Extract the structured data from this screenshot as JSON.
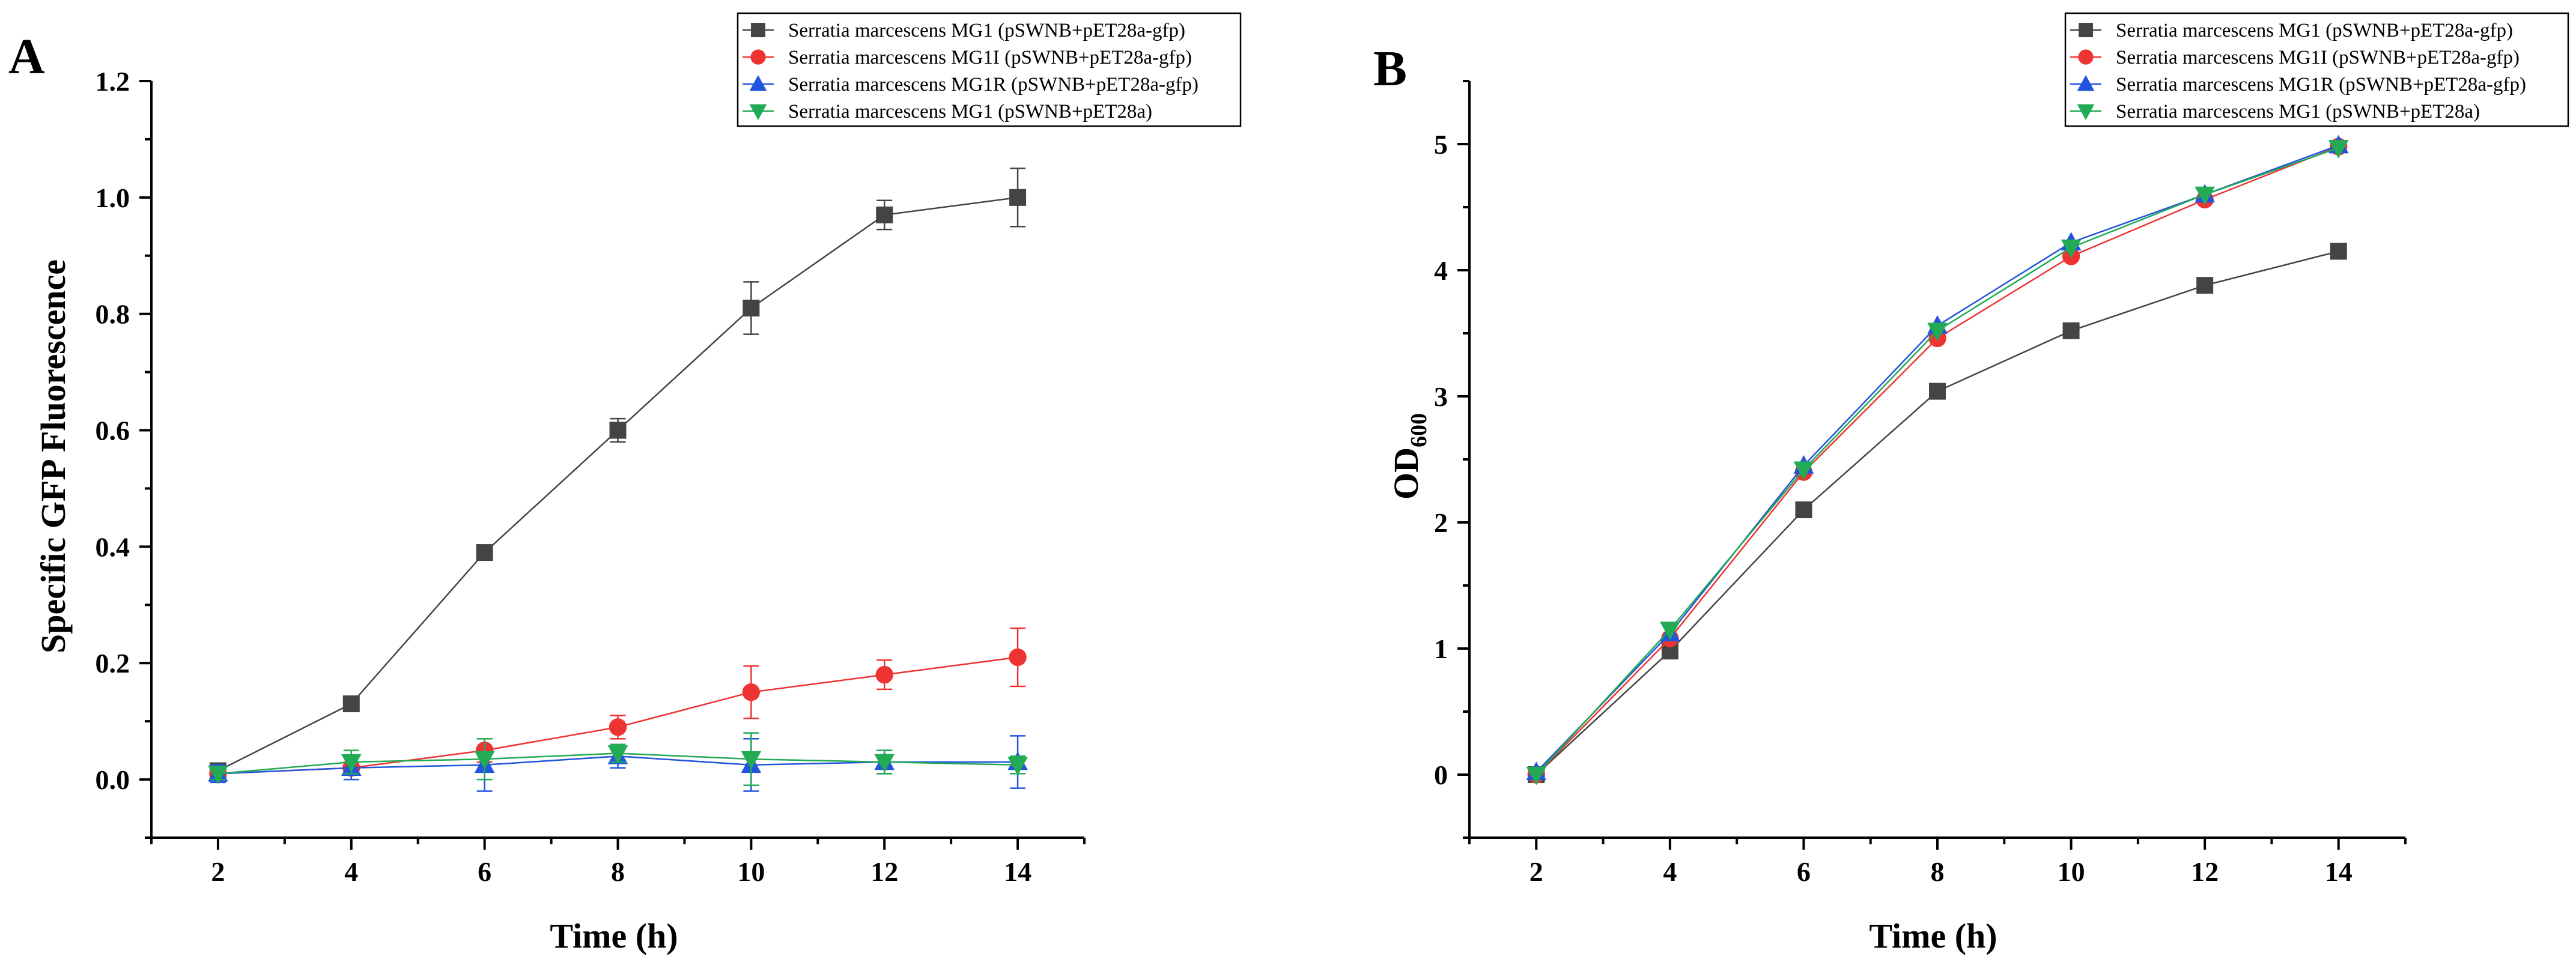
{
  "chart_data": [
    {
      "panel": "A",
      "type": "line",
      "xlabel": "Time (h)",
      "ylabel": "Specific GFP Fluorescence",
      "xlim": [
        1,
        15
      ],
      "ylim": [
        -0.1,
        1.2
      ],
      "xticks": [
        "2",
        "4",
        "6",
        "8",
        "10",
        "12",
        "14"
      ],
      "yticks": [
        "0.0",
        "0.2",
        "0.4",
        "0.6",
        "0.8",
        "1.0",
        "1.2"
      ],
      "legend_position": "top-right",
      "x": [
        2,
        4,
        6,
        8,
        10,
        12,
        14
      ],
      "series": [
        {
          "name": "Serratia marcescens MG1 (pSWNB+pET28a-gfp)",
          "color": "#444444",
          "marker": "square",
          "values": [
            0.015,
            0.13,
            0.39,
            0.6,
            0.81,
            0.97,
            1.0
          ],
          "errors": [
            0.01,
            0.01,
            0.01,
            0.02,
            0.045,
            0.025,
            0.05
          ]
        },
        {
          "name": "Serratia marcescens MG1I (pSWNB+pET28a-gfp)",
          "color": "#ee3333",
          "marker": "circle",
          "values": [
            0.01,
            0.02,
            0.05,
            0.09,
            0.15,
            0.18,
            0.21
          ],
          "errors": [
            0.01,
            0.01,
            0.02,
            0.02,
            0.045,
            0.025,
            0.05
          ]
        },
        {
          "name": "Serratia marcescens MG1R (pSWNB+pET28a-gfp)",
          "color": "#2255dd",
          "marker": "triangle-up",
          "values": [
            0.01,
            0.02,
            0.025,
            0.04,
            0.025,
            0.03,
            0.03
          ],
          "errors": [
            0.015,
            0.02,
            0.045,
            0.02,
            0.045,
            0.02,
            0.045
          ]
        },
        {
          "name": "Serratia marcescens MG1 (pSWNB+pET28a)",
          "color": "#22aa55",
          "marker": "triangle-down",
          "values": [
            0.01,
            0.03,
            0.035,
            0.045,
            0.035,
            0.03,
            0.025
          ],
          "errors": [
            0.01,
            0.02,
            0.035,
            0.015,
            0.045,
            0.02,
            0.015
          ]
        }
      ]
    },
    {
      "panel": "B",
      "type": "line",
      "xlabel": "Time (h)",
      "ylabel": "OD",
      "ylabel_subscript": "600",
      "xlim": [
        1,
        15
      ],
      "ylim": [
        -0.5,
        5.5
      ],
      "xticks": [
        "2",
        "4",
        "6",
        "8",
        "10",
        "12",
        "14"
      ],
      "yticks": [
        "0",
        "1",
        "2",
        "3",
        "4",
        "5"
      ],
      "legend_position": "top-right",
      "x": [
        2,
        4,
        6,
        8,
        10,
        12,
        14
      ],
      "series": [
        {
          "name": "Serratia marcescens MG1 (pSWNB+pET28a-gfp)",
          "color": "#444444",
          "marker": "square",
          "values": [
            0.0,
            0.98,
            2.1,
            3.04,
            3.52,
            3.88,
            4.15
          ]
        },
        {
          "name": "Serratia marcescens MG1I (pSWNB+pET28a-gfp)",
          "color": "#ee3333",
          "marker": "circle",
          "values": [
            0.0,
            1.08,
            2.4,
            3.46,
            4.11,
            4.56,
            4.98
          ]
        },
        {
          "name": "Serratia marcescens MG1R (pSWNB+pET28a-gfp)",
          "color": "#2255dd",
          "marker": "triangle-up",
          "values": [
            0.02,
            1.12,
            2.45,
            3.56,
            4.22,
            4.6,
            4.99
          ]
        },
        {
          "name": "Serratia marcescens MG1 (pSWNB+pET28a)",
          "color": "#22aa55",
          "marker": "triangle-down",
          "values": [
            0.0,
            1.15,
            2.42,
            3.52,
            4.18,
            4.6,
            4.97
          ]
        }
      ]
    }
  ]
}
